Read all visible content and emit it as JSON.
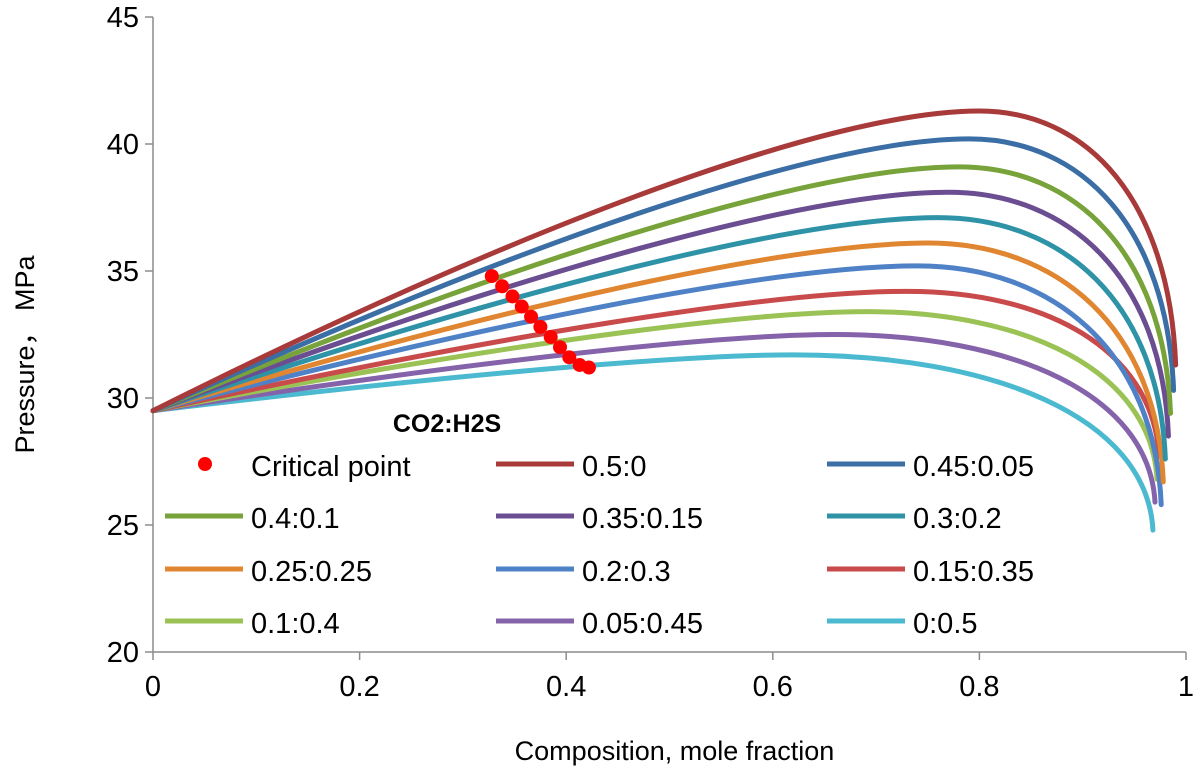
{
  "chart_data": {
    "type": "line",
    "xlabel": "Composition, mole fraction",
    "ylabel": "Pressure， MPa",
    "xlim": [
      0,
      1
    ],
    "ylim": [
      20,
      45
    ],
    "x_ticks": [
      "0",
      "0.2",
      "0.4",
      "0.6",
      "0.8",
      "1"
    ],
    "y_ticks": [
      "20",
      "25",
      "30",
      "35",
      "40",
      "45"
    ],
    "grid": false,
    "legend": {
      "title": "CO2:H2S",
      "placement": "center-left",
      "columns": 3
    },
    "series": [
      {
        "name": "0.5:0",
        "color": "#a83a3a",
        "peak": [
          0.8,
          41.3
        ],
        "end": [
          0.99,
          31.3
        ]
      },
      {
        "name": "0.45:0.05",
        "color": "#3a6ea5",
        "peak": [
          0.79,
          40.2
        ],
        "end": [
          0.988,
          30.3
        ]
      },
      {
        "name": "0.4:0.1",
        "color": "#77a33a",
        "peak": [
          0.78,
          39.1
        ],
        "end": [
          0.985,
          29.4
        ]
      },
      {
        "name": "0.35:0.15",
        "color": "#6a4e91",
        "peak": [
          0.77,
          38.1
        ],
        "end": [
          0.983,
          28.5
        ]
      },
      {
        "name": "0.3:0.2",
        "color": "#2f93a8",
        "peak": [
          0.76,
          37.1
        ],
        "end": [
          0.98,
          27.6
        ]
      },
      {
        "name": "0.25:0.25",
        "color": "#e08530",
        "peak": [
          0.75,
          36.1
        ],
        "end": [
          0.978,
          26.7
        ]
      },
      {
        "name": "0.2:0.3",
        "color": "#4f81c7",
        "peak": [
          0.74,
          35.2
        ],
        "end": [
          0.976,
          25.8
        ]
      },
      {
        "name": "0.15:0.35",
        "color": "#c94a4a",
        "peak": [
          0.73,
          34.2
        ],
        "end": [
          0.974,
          27.7
        ]
      },
      {
        "name": "0.1:0.4",
        "color": "#9bc255",
        "peak": [
          0.69,
          33.4
        ],
        "end": [
          0.972,
          26.8
        ]
      },
      {
        "name": "0.05:0.45",
        "color": "#8463aa",
        "peak": [
          0.66,
          32.5
        ],
        "end": [
          0.97,
          25.9
        ]
      },
      {
        "name": "0:0.5",
        "color": "#4bb9d0",
        "peak": [
          0.62,
          31.7
        ],
        "end": [
          0.968,
          24.8
        ]
      }
    ],
    "start_point": [
      0,
      29.5
    ],
    "critical_points": {
      "name": "Critical point",
      "color": "#ff0000",
      "x": [
        0.328,
        0.338,
        0.348,
        0.357,
        0.366,
        0.375,
        0.385,
        0.394,
        0.403,
        0.413,
        0.422
      ],
      "y": [
        34.8,
        34.4,
        34.0,
        33.6,
        33.2,
        32.8,
        32.4,
        32.0,
        31.6,
        31.3,
        31.2
      ]
    }
  }
}
